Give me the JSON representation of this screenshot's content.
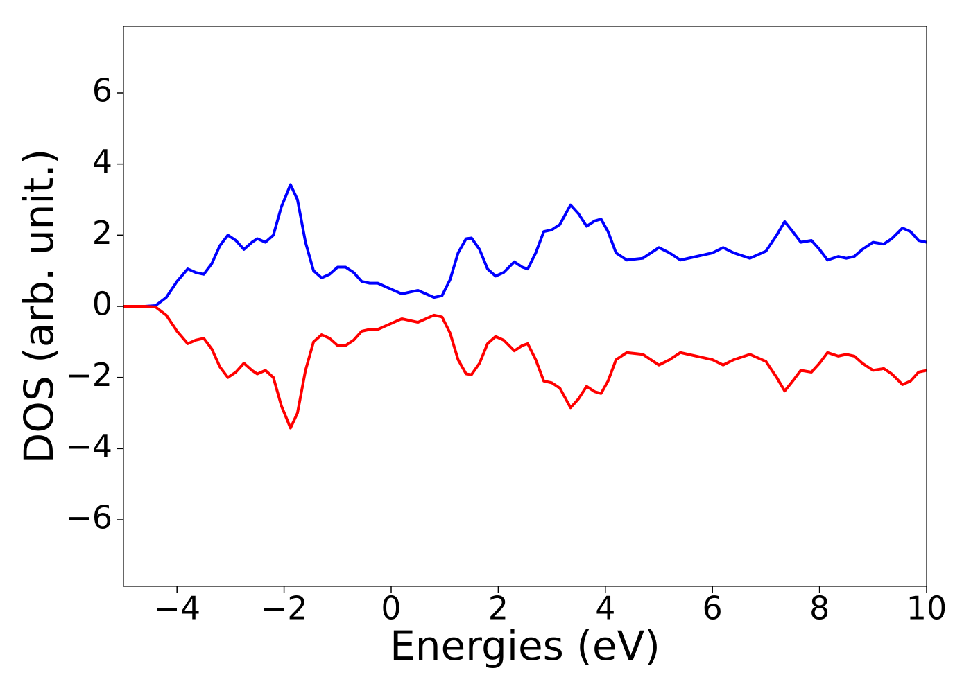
{
  "chart_data": {
    "type": "line",
    "x_label": "Energies (eV)",
    "y_label": "DOS (arb. unit.)",
    "xlim": [
      -5,
      10
    ],
    "ylim": [
      -7.87,
      7.87
    ],
    "xticks": [
      {
        "value": -4,
        "label": "−4"
      },
      {
        "value": -2,
        "label": "−2"
      },
      0,
      2,
      4,
      6,
      8,
      10
    ],
    "yticks": [
      {
        "value": -6,
        "label": "−6"
      },
      {
        "value": -4,
        "label": "−4"
      },
      {
        "value": -2,
        "label": "−2"
      },
      0,
      2,
      4,
      6
    ],
    "grid": false,
    "x": [
      -5,
      -4.6,
      -4.4,
      -4.2,
      -4.0,
      -3.8,
      -3.65,
      -3.5,
      -3.35,
      -3.2,
      -3.05,
      -2.9,
      -2.75,
      -2.6,
      -2.5,
      -2.35,
      -2.2,
      -2.05,
      -1.88,
      -1.75,
      -1.6,
      -1.45,
      -1.3,
      -1.15,
      -1.0,
      -0.85,
      -0.7,
      -0.55,
      -0.4,
      -0.25,
      -0.1,
      0.05,
      0.2,
      0.35,
      0.5,
      0.65,
      0.8,
      0.95,
      1.1,
      1.25,
      1.4,
      1.5,
      1.65,
      1.8,
      1.95,
      2.1,
      2.3,
      2.45,
      2.55,
      2.7,
      2.85,
      3.0,
      3.15,
      3.35,
      3.5,
      3.65,
      3.8,
      3.92,
      4.05,
      4.2,
      4.4,
      4.7,
      5.0,
      5.2,
      5.4,
      5.7,
      6.0,
      6.2,
      6.4,
      6.7,
      7.0,
      7.2,
      7.35,
      7.5,
      7.65,
      7.85,
      8.0,
      8.15,
      8.35,
      8.5,
      8.65,
      8.8,
      9.0,
      9.2,
      9.35,
      9.55,
      9.7,
      9.85,
      10
    ],
    "series": [
      {
        "color": "#0000ff",
        "values": [
          0,
          0,
          0.02,
          0.25,
          0.7,
          1.05,
          0.95,
          0.9,
          1.2,
          1.7,
          2.0,
          1.85,
          1.6,
          1.8,
          1.9,
          1.8,
          2.0,
          2.8,
          3.42,
          3.0,
          1.8,
          1.0,
          0.8,
          0.9,
          1.1,
          1.1,
          0.95,
          0.7,
          0.65,
          0.65,
          0.55,
          0.45,
          0.35,
          0.4,
          0.45,
          0.35,
          0.25,
          0.3,
          0.75,
          1.5,
          1.9,
          1.92,
          1.6,
          1.05,
          0.85,
          0.95,
          1.25,
          1.1,
          1.05,
          1.5,
          2.1,
          2.15,
          2.3,
          2.85,
          2.6,
          2.25,
          2.4,
          2.45,
          2.1,
          1.5,
          1.3,
          1.35,
          1.65,
          1.5,
          1.3,
          1.4,
          1.5,
          1.65,
          1.5,
          1.35,
          1.55,
          2.0,
          2.38,
          2.1,
          1.8,
          1.85,
          1.6,
          1.3,
          1.4,
          1.35,
          1.4,
          1.6,
          1.8,
          1.75,
          1.9,
          2.2,
          2.1,
          1.85,
          1.8
        ]
      },
      {
        "color": "#ff0000",
        "values": [
          0,
          0,
          -0.02,
          -0.25,
          -0.7,
          -1.05,
          -0.95,
          -0.9,
          -1.2,
          -1.7,
          -2.0,
          -1.85,
          -1.6,
          -1.8,
          -1.9,
          -1.8,
          -2.0,
          -2.8,
          -3.42,
          -3.0,
          -1.8,
          -1.0,
          -0.8,
          -0.9,
          -1.1,
          -1.1,
          -0.95,
          -0.7,
          -0.65,
          -0.65,
          -0.55,
          -0.45,
          -0.35,
          -0.4,
          -0.45,
          -0.35,
          -0.25,
          -0.3,
          -0.75,
          -1.5,
          -1.9,
          -1.92,
          -1.6,
          -1.05,
          -0.85,
          -0.95,
          -1.25,
          -1.1,
          -1.05,
          -1.5,
          -2.1,
          -2.15,
          -2.3,
          -2.85,
          -2.6,
          -2.25,
          -2.4,
          -2.45,
          -2.1,
          -1.5,
          -1.3,
          -1.35,
          -1.65,
          -1.5,
          -1.3,
          -1.4,
          -1.5,
          -1.65,
          -1.5,
          -1.35,
          -1.55,
          -2.0,
          -2.38,
          -2.1,
          -1.8,
          -1.85,
          -1.6,
          -1.3,
          -1.4,
          -1.35,
          -1.4,
          -1.6,
          -1.8,
          -1.75,
          -1.9,
          -2.2,
          -2.1,
          -1.85,
          -1.8
        ]
      }
    ]
  }
}
